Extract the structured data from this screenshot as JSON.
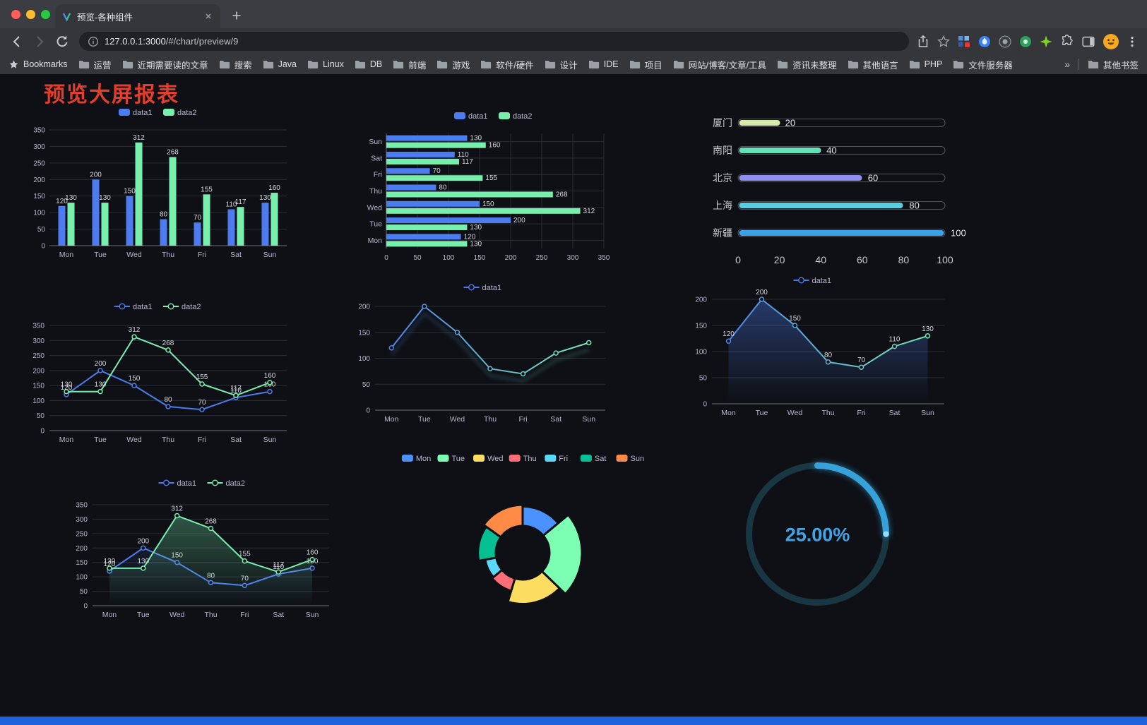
{
  "browser": {
    "tab_title": "预览-各种组件",
    "url_host": "127.0.0.1:3000",
    "url_path": "/#/chart/preview/9",
    "bookmarks_label": "Bookmarks",
    "bookmarks": [
      "运营",
      "近期需要读的文章",
      "搜索",
      "Java",
      "Linux",
      "DB",
      "前端",
      "游戏",
      "软件/硬件",
      "设计",
      "IDE",
      "项目",
      "网站/博客/文章/工具",
      "资讯未整理",
      "其他语言",
      "PHP",
      "文件服务器"
    ],
    "bookmarks_overflow": "»",
    "other_bookmarks_label": "其他书签"
  },
  "page": {
    "title": "预览大屏报表",
    "title_color": "#e23e2c",
    "background": "#0e1015"
  },
  "chart_data": [
    {
      "type": "bar",
      "categories": [
        "Mon",
        "Tue",
        "Wed",
        "Thu",
        "Fri",
        "Sat",
        "Sun"
      ],
      "series": [
        {
          "name": "data1",
          "color": "#4c7df0",
          "values": [
            120,
            200,
            150,
            80,
            70,
            110,
            130
          ]
        },
        {
          "name": "data2",
          "color": "#79efae",
          "values": [
            130,
            130,
            312,
            268,
            155,
            117,
            160
          ]
        }
      ],
      "ylim": [
        0,
        350
      ],
      "yticks": [
        0,
        50,
        100,
        150,
        200,
        250,
        300,
        350
      ],
      "legend_position": "top"
    },
    {
      "type": "hbar",
      "categories": [
        "Mon",
        "Tue",
        "Wed",
        "Thu",
        "Fri",
        "Sat",
        "Sun"
      ],
      "category_order_top_to_bottom": [
        "Sun",
        "Sat",
        "Fri",
        "Thu",
        "Wed",
        "Tue",
        "Mon"
      ],
      "series": [
        {
          "name": "data1",
          "color": "#4c7df0",
          "values": [
            120,
            200,
            150,
            80,
            70,
            110,
            130
          ]
        },
        {
          "name": "data2",
          "color": "#79efae",
          "values": [
            130,
            130,
            312,
            268,
            155,
            117,
            160
          ]
        }
      ],
      "xlim": [
        0,
        350
      ],
      "xticks": [
        0,
        50,
        100,
        150,
        200,
        250,
        300,
        350
      ],
      "legend_position": "top"
    },
    {
      "type": "progress",
      "max": 100,
      "rows": [
        {
          "label": "厦门",
          "value": 20,
          "color": "#d5e9a8"
        },
        {
          "label": "南阳",
          "value": 40,
          "color": "#63e2b7"
        },
        {
          "label": "北京",
          "value": 60,
          "color": "#8e8ff0"
        },
        {
          "label": "上海",
          "value": 80,
          "color": "#58cfe0"
        },
        {
          "label": "新疆",
          "value": 100,
          "color": "#39a2e8"
        }
      ],
      "xticks": [
        0,
        20,
        40,
        60,
        80,
        100
      ]
    },
    {
      "type": "line",
      "categories": [
        "Mon",
        "Tue",
        "Wed",
        "Thu",
        "Fri",
        "Sat",
        "Sun"
      ],
      "series": [
        {
          "name": "data1",
          "color": "#4c7df0",
          "values": [
            120,
            200,
            150,
            80,
            70,
            110,
            130
          ],
          "labels": true
        },
        {
          "name": "data2",
          "color": "#79efae",
          "values": [
            130,
            130,
            312,
            268,
            155,
            117,
            160
          ],
          "labels": true
        }
      ],
      "ylim": [
        0,
        350
      ],
      "yticks": [
        0,
        50,
        100,
        150,
        200,
        250,
        300,
        350
      ],
      "legend_position": "top"
    },
    {
      "type": "line",
      "categories": [
        "Mon",
        "Tue",
        "Wed",
        "Thu",
        "Fri",
        "Sat",
        "Sun"
      ],
      "series": [
        {
          "name": "data1",
          "gradient": [
            "#4c7df0",
            "#79efae"
          ],
          "values": [
            120,
            200,
            150,
            80,
            70,
            110,
            130
          ]
        }
      ],
      "ylim": [
        0,
        200
      ],
      "yticks": [
        0,
        50,
        100,
        150,
        200
      ],
      "legend_position": "top"
    },
    {
      "type": "line",
      "categories": [
        "Mon",
        "Tue",
        "Wed",
        "Thu",
        "Fri",
        "Sat",
        "Sun"
      ],
      "series": [
        {
          "name": "data1",
          "gradient": [
            "#4c7df0",
            "#79efae"
          ],
          "area": true,
          "area_opacity": 0.38,
          "values": [
            120,
            200,
            150,
            80,
            70,
            110,
            130
          ],
          "labels": true
        }
      ],
      "ylim": [
        0,
        200
      ],
      "yticks": [
        0,
        50,
        100,
        150,
        200
      ],
      "legend_position": "top"
    },
    {
      "type": "line",
      "categories": [
        "Mon",
        "Tue",
        "Wed",
        "Thu",
        "Fri",
        "Sat",
        "Sun"
      ],
      "series": [
        {
          "name": "data1",
          "color": "#4c7df0",
          "area": true,
          "area_opacity": 0.18,
          "values": [
            120,
            200,
            150,
            80,
            70,
            110,
            130
          ],
          "labels": true
        },
        {
          "name": "data2",
          "color": "#79efae",
          "area": true,
          "area_opacity": 0.35,
          "values": [
            130,
            130,
            312,
            268,
            155,
            117,
            160
          ],
          "labels": true
        }
      ],
      "ylim": [
        0,
        350
      ],
      "yticks": [
        0,
        50,
        100,
        150,
        200,
        250,
        300,
        350
      ],
      "legend_position": "top"
    },
    {
      "type": "rose",
      "items": [
        {
          "name": "Mon",
          "color": "#4992ff",
          "value": 120
        },
        {
          "name": "Tue",
          "color": "#7cffb2",
          "value": 200
        },
        {
          "name": "Wed",
          "color": "#fddd60",
          "value": 150
        },
        {
          "name": "Thu",
          "color": "#ff6e76",
          "value": 80
        },
        {
          "name": "Fri",
          "color": "#58d9f9",
          "value": 70
        },
        {
          "name": "Sat",
          "color": "#05c091",
          "value": 110
        },
        {
          "name": "Sun",
          "color": "#ff8a45",
          "value": 130
        }
      ],
      "legend_position": "top"
    },
    {
      "type": "gauge",
      "value": 25,
      "label": "25.00%",
      "color": "#37a2da",
      "track_color": "#183742"
    }
  ]
}
